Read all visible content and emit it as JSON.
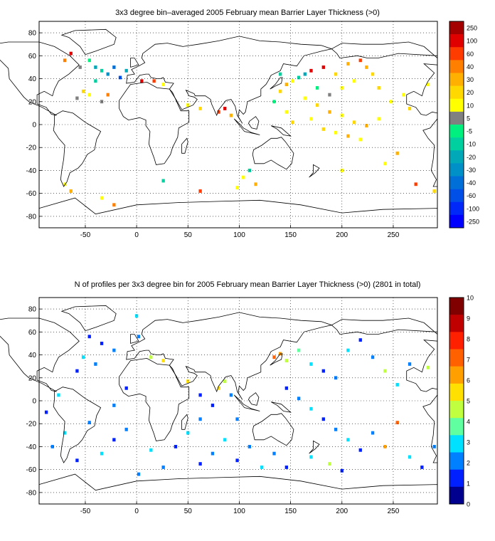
{
  "chart_data": [
    {
      "type": "heatmap",
      "title": "3x3 degree bin–averaged 2005 February mean Barrier Layer Thickness (>0)",
      "x_ticks": [
        "-50",
        "0",
        "50",
        "100",
        "150",
        "200",
        "250"
      ],
      "y_ticks": [
        "80",
        "60",
        "40",
        "20",
        "0",
        "-20",
        "-40",
        "-60",
        "-80"
      ],
      "xlim": [
        -95,
        293
      ],
      "ylim": [
        -90,
        90
      ],
      "grid": true,
      "colorbar": {
        "labels": [
          "250",
          "100",
          "60",
          "40",
          "30",
          "20",
          "10",
          "5",
          "-5",
          "-10",
          "-20",
          "-30",
          "-40",
          "-60",
          "-100",
          "-250"
        ],
        "colors": [
          "#a50000",
          "#e00000",
          "#ff3c00",
          "#ff8000",
          "#ffb000",
          "#ffd800",
          "#ffff00",
          "#808080",
          "#00f080",
          "#00d0a0",
          "#00a8b8",
          "#0090c8",
          "#0070d8",
          "#0050e8",
          "#0028f8",
          "#0000ff"
        ]
      },
      "bins": [
        {
          "lon": -70,
          "lat": 56,
          "level": 3
        },
        {
          "lon": -64,
          "lat": 62,
          "level": 1
        },
        {
          "lon": -55,
          "lat": 50,
          "level": 7
        },
        {
          "lon": -46,
          "lat": 56,
          "level": 8
        },
        {
          "lon": -40,
          "lat": 50,
          "level": 10
        },
        {
          "lon": -34,
          "lat": 47,
          "level": 9
        },
        {
          "lon": -28,
          "lat": 44,
          "level": 11
        },
        {
          "lon": -22,
          "lat": 50,
          "level": 12
        },
        {
          "lon": -16,
          "lat": 41,
          "level": 13
        },
        {
          "lon": -10,
          "lat": 47,
          "level": 10
        },
        {
          "lon": -40,
          "lat": 38,
          "level": 9
        },
        {
          "lon": -52,
          "lat": 29,
          "level": 5
        },
        {
          "lon": -46,
          "lat": 26,
          "level": 6
        },
        {
          "lon": -58,
          "lat": 23,
          "level": 7
        },
        {
          "lon": -28,
          "lat": 26,
          "level": 3
        },
        {
          "lon": -34,
          "lat": 20,
          "level": 7
        },
        {
          "lon": 5,
          "lat": 38,
          "level": 1
        },
        {
          "lon": 17,
          "lat": 38,
          "level": 2
        },
        {
          "lon": 26,
          "lat": 35,
          "level": 6
        },
        {
          "lon": 50,
          "lat": 17,
          "level": 6
        },
        {
          "lon": 62,
          "lat": 14,
          "level": 5
        },
        {
          "lon": 80,
          "lat": 11,
          "level": 2
        },
        {
          "lon": 86,
          "lat": 14,
          "level": 1
        },
        {
          "lon": 92,
          "lat": 8,
          "level": 4
        },
        {
          "lon": 140,
          "lat": 29,
          "level": 5
        },
        {
          "lon": 146,
          "lat": 35,
          "level": 4
        },
        {
          "lon": 152,
          "lat": 38,
          "level": 6
        },
        {
          "lon": 158,
          "lat": 41,
          "level": 9
        },
        {
          "lon": 170,
          "lat": 47,
          "level": 1
        },
        {
          "lon": 182,
          "lat": 50,
          "level": 1
        },
        {
          "lon": 194,
          "lat": 44,
          "level": 5
        },
        {
          "lon": 206,
          "lat": 53,
          "level": 4
        },
        {
          "lon": 218,
          "lat": 56,
          "level": 2
        },
        {
          "lon": 224,
          "lat": 50,
          "level": 4
        },
        {
          "lon": 230,
          "lat": 44,
          "level": 5
        },
        {
          "lon": 164,
          "lat": 23,
          "level": 6
        },
        {
          "lon": 176,
          "lat": 17,
          "level": 5
        },
        {
          "lon": 188,
          "lat": 11,
          "level": 4
        },
        {
          "lon": 200,
          "lat": 8,
          "level": 6
        },
        {
          "lon": 212,
          "lat": 2,
          "level": 5
        },
        {
          "lon": 224,
          "lat": -1,
          "level": 4
        },
        {
          "lon": 236,
          "lat": 5,
          "level": 6
        },
        {
          "lon": 170,
          "lat": 5,
          "level": 6
        },
        {
          "lon": 182,
          "lat": -4,
          "level": 5
        },
        {
          "lon": 194,
          "lat": -7,
          "level": 6
        },
        {
          "lon": 206,
          "lat": -10,
          "level": 4
        },
        {
          "lon": 218,
          "lat": -13,
          "level": 6
        },
        {
          "lon": 146,
          "lat": 11,
          "level": 6
        },
        {
          "lon": 152,
          "lat": 2,
          "level": 5
        },
        {
          "lon": 134,
          "lat": 20,
          "level": 8
        },
        {
          "lon": 140,
          "lat": 44,
          "level": 9
        },
        {
          "lon": 284,
          "lat": 35,
          "level": 6
        },
        {
          "lon": 110,
          "lat": -40,
          "level": 9
        },
        {
          "lon": 104,
          "lat": -46,
          "level": 6
        },
        {
          "lon": 116,
          "lat": -52,
          "level": 4
        },
        {
          "lon": 98,
          "lat": -55,
          "level": 6
        },
        {
          "lon": 62,
          "lat": -58,
          "level": 2
        },
        {
          "lon": 26,
          "lat": -49,
          "level": 9
        },
        {
          "lon": -70,
          "lat": -52,
          "level": 6
        },
        {
          "lon": -64,
          "lat": -58,
          "level": 4
        },
        {
          "lon": -34,
          "lat": -64,
          "level": 6
        },
        {
          "lon": -22,
          "lat": -70,
          "level": 3
        },
        {
          "lon": 200,
          "lat": -40,
          "level": 6
        },
        {
          "lon": 242,
          "lat": -34,
          "level": 6
        },
        {
          "lon": 254,
          "lat": -25,
          "level": 4
        },
        {
          "lon": 272,
          "lat": -52,
          "level": 2
        },
        {
          "lon": 290,
          "lat": -58,
          "level": 5
        },
        {
          "lon": 248,
          "lat": 20,
          "level": 6
        },
        {
          "lon": 266,
          "lat": 14,
          "level": 5
        },
        {
          "lon": 260,
          "lat": 26,
          "level": 6
        },
        {
          "lon": 200,
          "lat": 32,
          "level": 6
        },
        {
          "lon": 188,
          "lat": 26,
          "level": 7
        },
        {
          "lon": 176,
          "lat": 32,
          "level": 8
        },
        {
          "lon": 164,
          "lat": 44,
          "level": 10
        },
        {
          "lon": 212,
          "lat": 38,
          "level": 6
        },
        {
          "lon": 236,
          "lat": 32,
          "level": 5
        }
      ]
    },
    {
      "type": "heatmap",
      "title": "N of profiles per 3x3 degree bin for 2005 February mean Barrier Layer Thickness (>0) (2801 in total)",
      "x_ticks": [
        "-50",
        "0",
        "50",
        "100",
        "150",
        "200",
        "250"
      ],
      "y_ticks": [
        "80",
        "60",
        "40",
        "20",
        "0",
        "-20",
        "-40",
        "-60",
        "-80"
      ],
      "xlim": [
        -95,
        293
      ],
      "ylim": [
        -90,
        90
      ],
      "grid": true,
      "colorbar": {
        "labels": [
          "10",
          "9",
          "8",
          "7",
          "6",
          "5",
          "4",
          "3",
          "2",
          "1",
          "0"
        ],
        "colors": [
          "#800000",
          "#c00000",
          "#ff2000",
          "#ff6000",
          "#ffa000",
          "#ffe000",
          "#c0ff40",
          "#60ffa0",
          "#00e0ff",
          "#0080ff",
          "#0020ff",
          "#00008f"
        ]
      },
      "bins": [
        {
          "lon": -46,
          "lat": 56,
          "count": 1
        },
        {
          "lon": -34,
          "lat": 50,
          "count": 1
        },
        {
          "lon": -22,
          "lat": 44,
          "count": 2
        },
        {
          "lon": -52,
          "lat": 38,
          "count": 3
        },
        {
          "lon": -40,
          "lat": 32,
          "count": 2
        },
        {
          "lon": -58,
          "lat": 26,
          "count": 1
        },
        {
          "lon": 0,
          "lat": 74,
          "count": 3
        },
        {
          "lon": 2,
          "lat": 56,
          "count": 2
        },
        {
          "lon": 14,
          "lat": 38,
          "count": 5
        },
        {
          "lon": 26,
          "lat": 35,
          "count": 6
        },
        {
          "lon": 50,
          "lat": 17,
          "count": 6
        },
        {
          "lon": 62,
          "lat": 5,
          "count": 1
        },
        {
          "lon": 80,
          "lat": 11,
          "count": 6
        },
        {
          "lon": 86,
          "lat": 17,
          "count": 5
        },
        {
          "lon": 92,
          "lat": 5,
          "count": 2
        },
        {
          "lon": 134,
          "lat": 38,
          "count": 8
        },
        {
          "lon": 140,
          "lat": 41,
          "count": 7
        },
        {
          "lon": 146,
          "lat": 35,
          "count": 5
        },
        {
          "lon": 158,
          "lat": 44,
          "count": 4
        },
        {
          "lon": 170,
          "lat": 32,
          "count": 3
        },
        {
          "lon": 182,
          "lat": 26,
          "count": 1
        },
        {
          "lon": 194,
          "lat": 20,
          "count": 2
        },
        {
          "lon": 206,
          "lat": 44,
          "count": 3
        },
        {
          "lon": 218,
          "lat": 53,
          "count": 1
        },
        {
          "lon": 230,
          "lat": 38,
          "count": 2
        },
        {
          "lon": 242,
          "lat": 26,
          "count": 5
        },
        {
          "lon": 254,
          "lat": 14,
          "count": 3
        },
        {
          "lon": 266,
          "lat": 32,
          "count": 2
        },
        {
          "lon": 284,
          "lat": 29,
          "count": 5
        },
        {
          "lon": 146,
          "lat": 11,
          "count": 1
        },
        {
          "lon": 158,
          "lat": 2,
          "count": 2
        },
        {
          "lon": 170,
          "lat": -7,
          "count": 3
        },
        {
          "lon": 182,
          "lat": -16,
          "count": 1
        },
        {
          "lon": 194,
          "lat": -25,
          "count": 2
        },
        {
          "lon": 206,
          "lat": -34,
          "count": 3
        },
        {
          "lon": 218,
          "lat": -43,
          "count": 1
        },
        {
          "lon": 230,
          "lat": -28,
          "count": 2
        },
        {
          "lon": 242,
          "lat": -40,
          "count": 7
        },
        {
          "lon": 254,
          "lat": -19,
          "count": 8
        },
        {
          "lon": 266,
          "lat": -49,
          "count": 3
        },
        {
          "lon": 278,
          "lat": -58,
          "count": 1
        },
        {
          "lon": 290,
          "lat": -40,
          "count": 2
        },
        {
          "lon": 110,
          "lat": -40,
          "count": 2
        },
        {
          "lon": 98,
          "lat": -52,
          "count": 1
        },
        {
          "lon": 86,
          "lat": -34,
          "count": 3
        },
        {
          "lon": 74,
          "lat": -46,
          "count": 2
        },
        {
          "lon": 62,
          "lat": -55,
          "count": 1
        },
        {
          "lon": 50,
          "lat": -28,
          "count": 3
        },
        {
          "lon": 38,
          "lat": -40,
          "count": 1
        },
        {
          "lon": 26,
          "lat": -58,
          "count": 2
        },
        {
          "lon": 14,
          "lat": -43,
          "count": 3
        },
        {
          "lon": 2,
          "lat": -64,
          "count": 2
        },
        {
          "lon": -10,
          "lat": -25,
          "count": 2
        },
        {
          "lon": -22,
          "lat": -34,
          "count": 1
        },
        {
          "lon": -34,
          "lat": -46,
          "count": 3
        },
        {
          "lon": -46,
          "lat": -19,
          "count": 2
        },
        {
          "lon": -58,
          "lat": -52,
          "count": 1
        },
        {
          "lon": -70,
          "lat": -28,
          "count": 3
        },
        {
          "lon": -82,
          "lat": -40,
          "count": 2
        },
        {
          "lon": -88,
          "lat": -10,
          "count": 1
        },
        {
          "lon": -76,
          "lat": 5,
          "count": 3
        },
        {
          "lon": -22,
          "lat": -4,
          "count": 2
        },
        {
          "lon": -10,
          "lat": 11,
          "count": 1
        },
        {
          "lon": 62,
          "lat": -16,
          "count": 2
        },
        {
          "lon": 74,
          "lat": -4,
          "count": 1
        },
        {
          "lon": 98,
          "lat": -16,
          "count": 2
        },
        {
          "lon": 122,
          "lat": -58,
          "count": 3
        },
        {
          "lon": 134,
          "lat": -46,
          "count": 2
        },
        {
          "lon": 146,
          "lat": -58,
          "count": 1
        },
        {
          "lon": 170,
          "lat": -49,
          "count": 3
        },
        {
          "lon": 188,
          "lat": -55,
          "count": 5
        },
        {
          "lon": 200,
          "lat": -61,
          "count": 1
        }
      ]
    }
  ]
}
